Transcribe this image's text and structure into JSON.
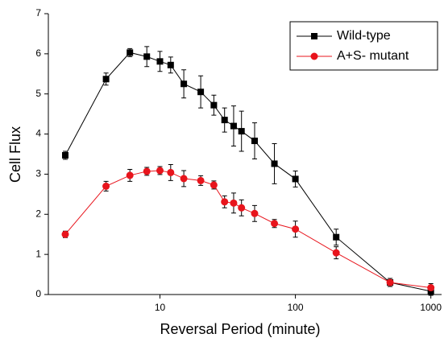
{
  "chart_data": {
    "type": "line",
    "xlabel": "Reversal Period (minute)",
    "ylabel": "Cell Flux",
    "x": [
      2,
      4,
      6,
      8,
      10,
      12,
      15,
      20,
      25,
      30,
      35,
      40,
      50,
      70,
      100,
      200,
      500,
      1000
    ],
    "xscale": "log",
    "xlim": [
      1.5,
      1200
    ],
    "xticks": [
      10,
      100,
      1000
    ],
    "ylim": [
      0,
      7
    ],
    "yticks": [
      0,
      1,
      2,
      3,
      4,
      5,
      6,
      7
    ],
    "legend": "upper right",
    "series": [
      {
        "name": "Wild-type",
        "color": "#000000",
        "marker": "square",
        "values": [
          3.47,
          5.37,
          6.03,
          5.93,
          5.81,
          5.72,
          5.25,
          5.05,
          4.72,
          4.35,
          4.2,
          4.07,
          3.83,
          3.26,
          2.88,
          1.43,
          0.3,
          0.08
        ],
        "errors": [
          0.1,
          0.15,
          0.1,
          0.25,
          0.25,
          0.2,
          0.35,
          0.4,
          0.25,
          0.3,
          0.5,
          0.5,
          0.45,
          0.5,
          0.2,
          0.2,
          0.1,
          0.1
        ]
      },
      {
        "name": "A+S- mutant",
        "color": "#e8141c",
        "marker": "circle",
        "values": [
          1.5,
          2.7,
          2.97,
          3.07,
          3.09,
          3.04,
          2.89,
          2.84,
          2.73,
          2.31,
          2.28,
          2.16,
          2.02,
          1.77,
          1.63,
          1.04,
          0.3,
          0.17
        ],
        "errors": [
          0.08,
          0.12,
          0.15,
          0.1,
          0.1,
          0.2,
          0.2,
          0.12,
          0.1,
          0.15,
          0.25,
          0.2,
          0.2,
          0.1,
          0.2,
          0.15,
          0.1,
          0.1
        ]
      }
    ]
  }
}
